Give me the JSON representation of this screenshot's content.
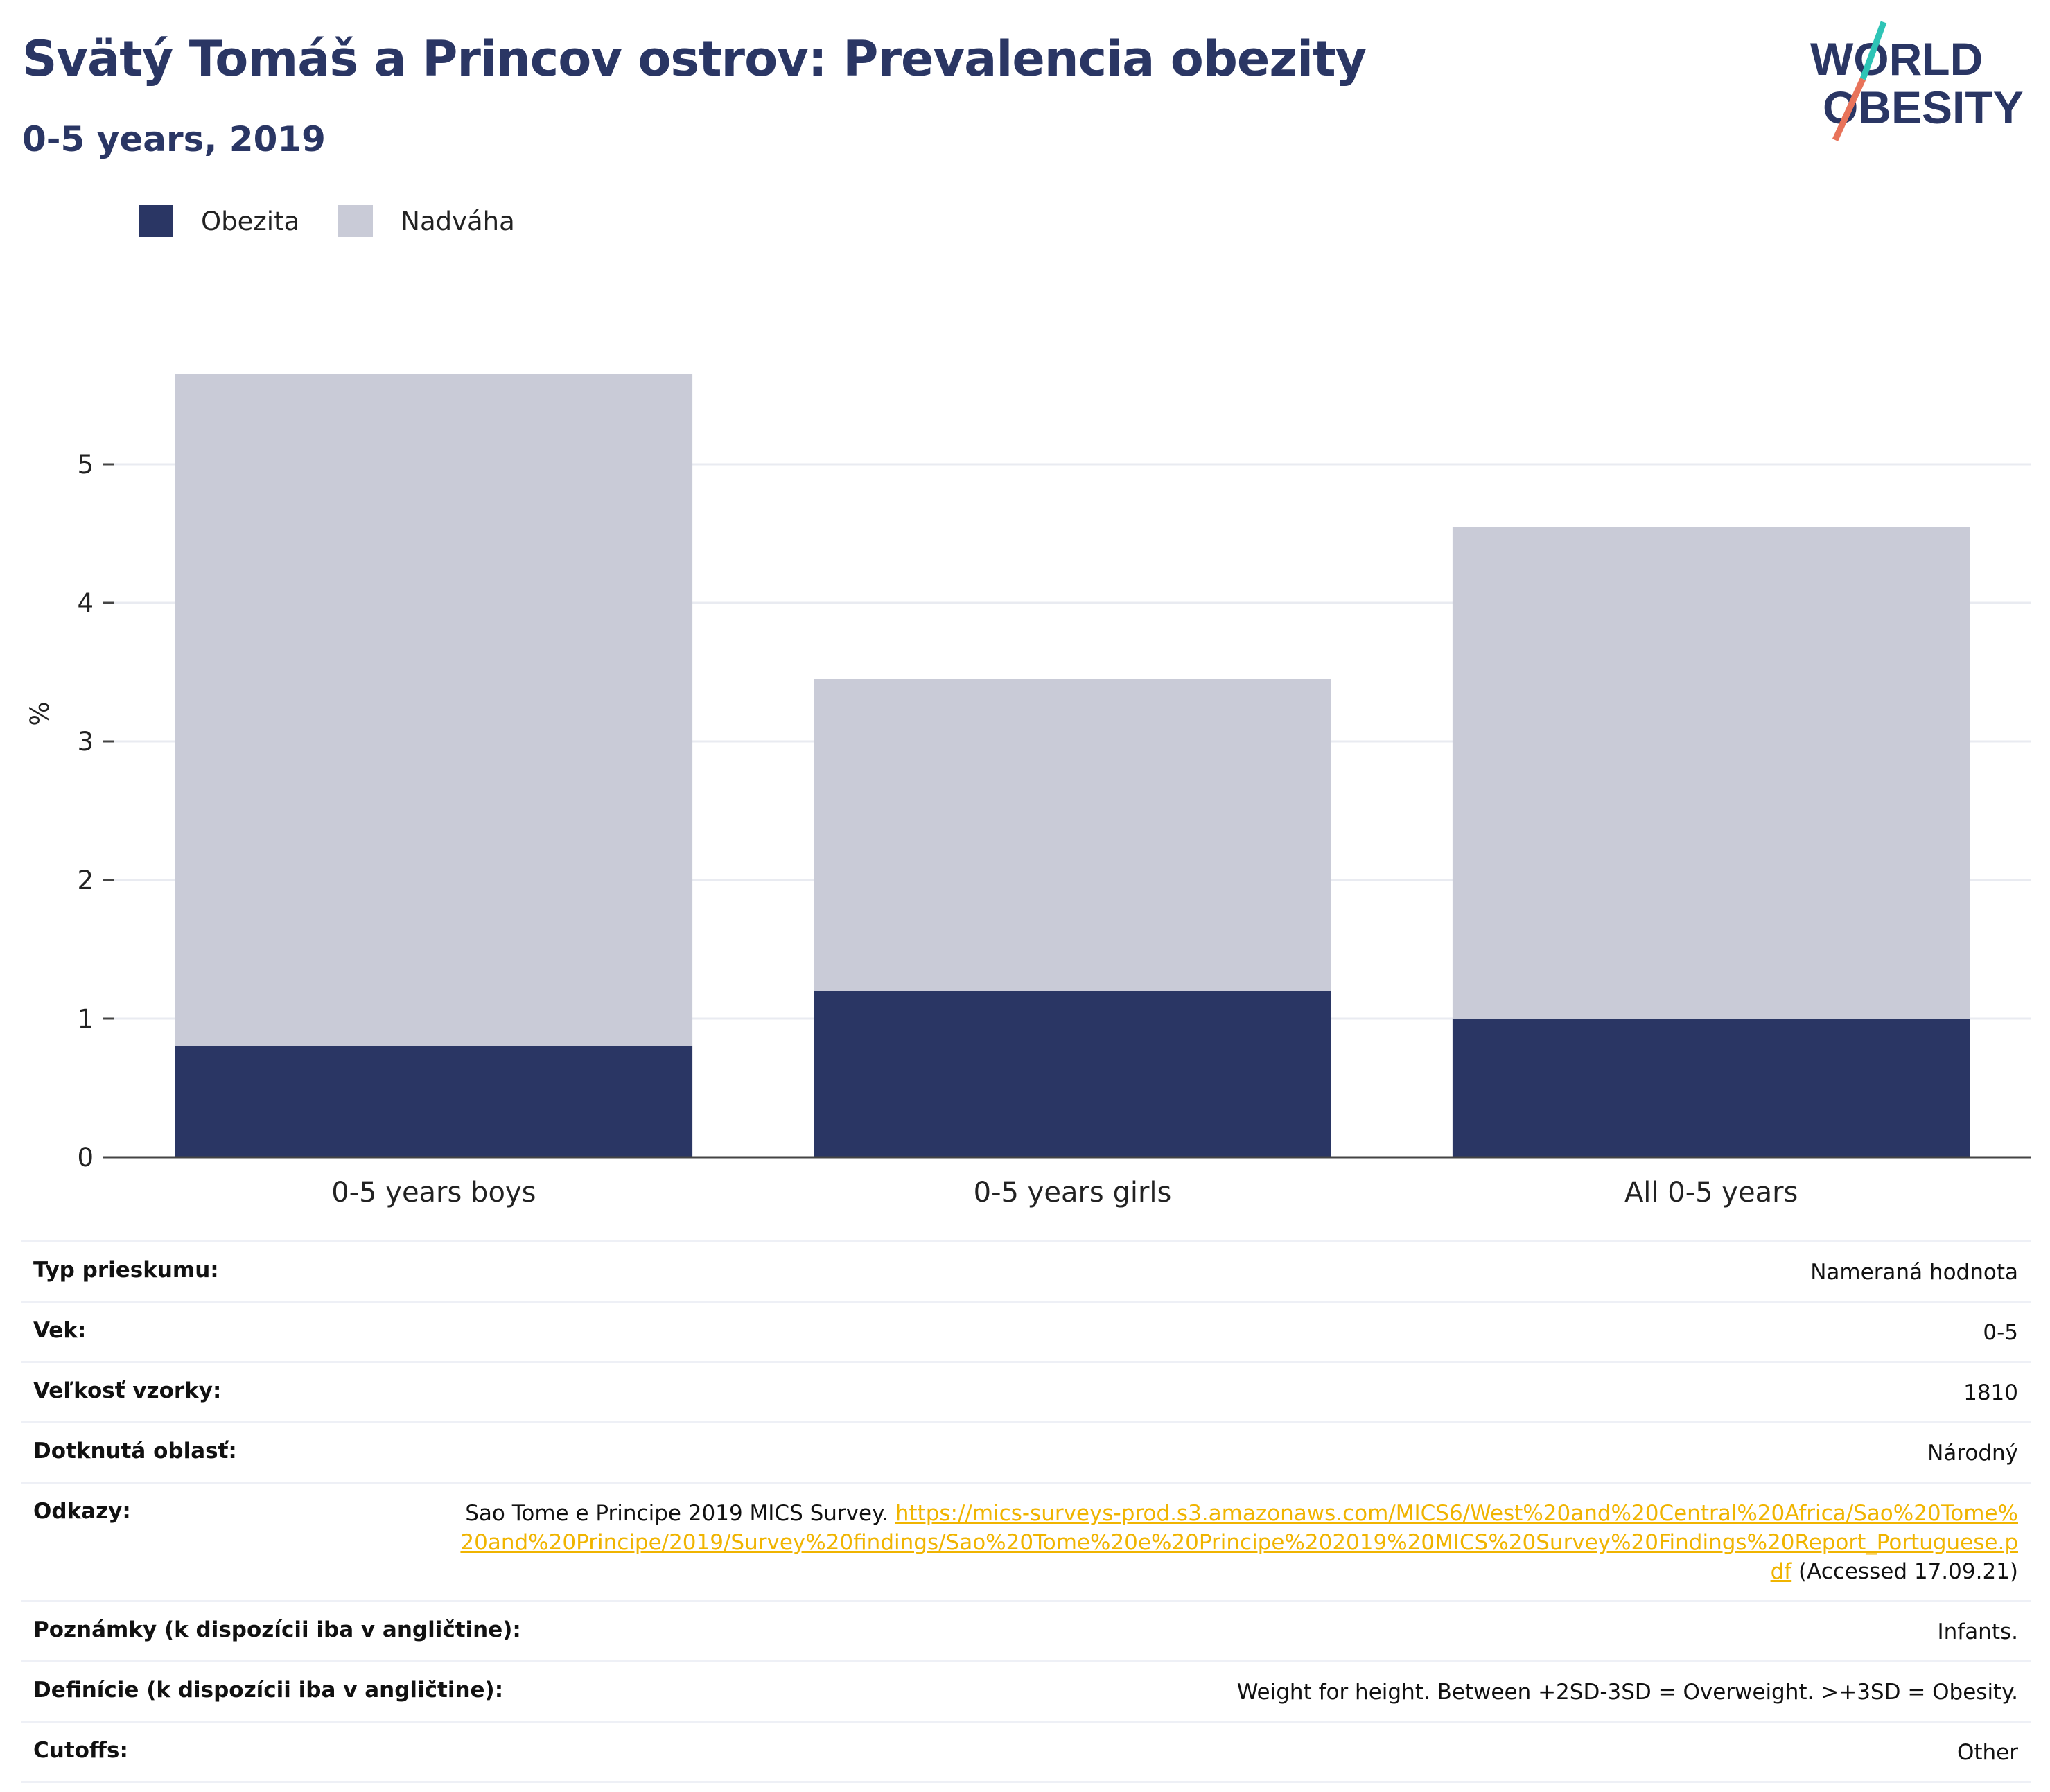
{
  "header": {
    "title": "Svätý Tomáš a Princov ostrov: Prevalencia obezity",
    "subtitle": "0-5 years, 2019"
  },
  "logo": {
    "line1": "WORLD",
    "line2": "OBESITY",
    "colors": {
      "text": "#2a3664",
      "slash_top": "#2ec4b6",
      "slash_bottom": "#e8735a"
    }
  },
  "legend": [
    {
      "label": "Obezita",
      "color": "#2a3664"
    },
    {
      "label": "Nadváha",
      "color": "#c9cbd7"
    }
  ],
  "chart_data": {
    "type": "bar",
    "stacked": true,
    "categories": [
      "0-5 years boys",
      "0-5 years girls",
      "All 0-5 years"
    ],
    "series": [
      {
        "name": "Obezita",
        "values": [
          0.8,
          1.2,
          1.0
        ],
        "color": "#2a3664"
      },
      {
        "name": "Nadváha",
        "values": [
          4.85,
          2.25,
          3.55
        ],
        "color": "#c9cbd7"
      }
    ],
    "ylabel": "%",
    "ylim": [
      0,
      6.1
    ],
    "yticks": [
      0,
      1,
      2,
      3,
      4,
      5
    ],
    "grid": true,
    "legend_position": "top-left"
  },
  "info": {
    "rows": [
      {
        "label": "Typ prieskumu:",
        "value": "Nameraná hodnota"
      },
      {
        "label": "Vek:",
        "value": "0-5"
      },
      {
        "label": "Veľkosť vzorky:",
        "value": "1810"
      },
      {
        "label": "Dotknutá oblasť:",
        "value": "Národný"
      }
    ],
    "references": {
      "label": "Odkazy:",
      "text_before": "Sao Tome e Principe 2019 MICS Survey. ",
      "link": "https://mics-surveys-prod.s3.amazonaws.com/MICS6/West%20and%20Central%20Africa/Sao%20Tome%20and%20Principe/2019/Survey%20findings/Sao%20Tome%20e%20Principe%202019%20MICS%20Survey%20Findings%20Report_Portuguese.pdf",
      "text_after": " (Accessed 17.09.21)"
    },
    "rows_after": [
      {
        "label": "Poznámky (k dispozícii iba v angličtine):",
        "value": "Infants."
      },
      {
        "label": "Definície (k dispozícii iba v angličtine):",
        "value": "Weight for height. Between +2SD-3SD = Overweight. >+3SD = Obesity."
      },
      {
        "label": "Cutoffs:",
        "value": "Other"
      }
    ]
  }
}
